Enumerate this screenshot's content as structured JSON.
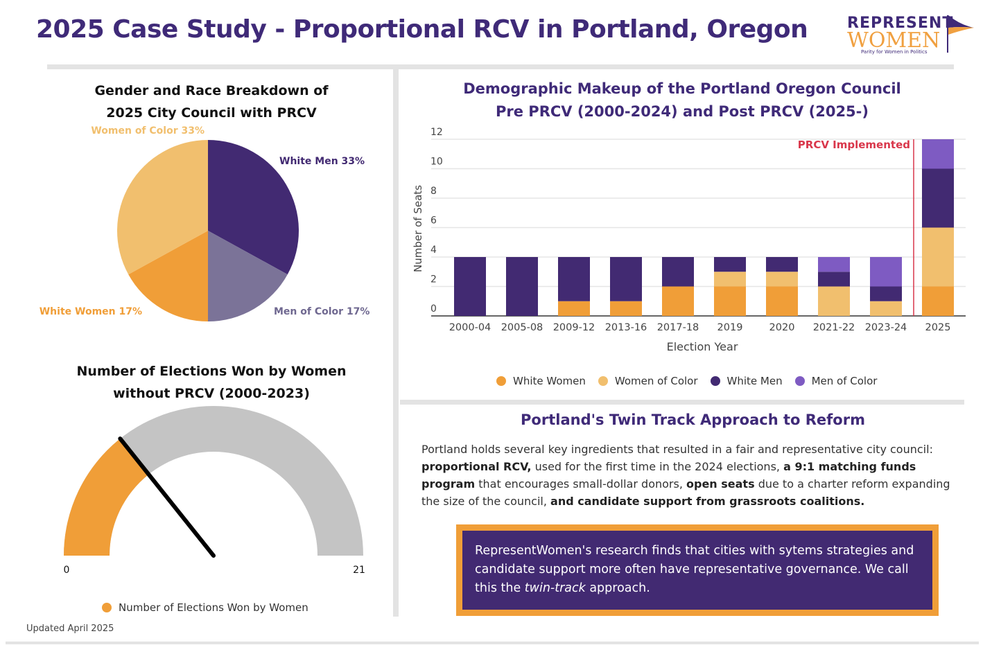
{
  "title": "2025 Case Study - Proportional RCV in Portland, Oregon",
  "logo": {
    "line1": "REPRESENT",
    "line2": "WOMEN",
    "tagline": "Parity for Women in Politics",
    "brand_purple": "#3f2a78",
    "brand_orange": "#f0a040"
  },
  "colors": {
    "white_women": "#f09e38",
    "women_of_color": "#f1bf6e",
    "white_men": "#422a72",
    "men_of_color": "#7e5bc2",
    "men_of_color_pie": "#7b7398",
    "prcv_line": "#d9374b",
    "gauge_bg": "#c4c4c4"
  },
  "pie": {
    "title_line1": "Gender and Race Breakdown of",
    "title_line2": "2025 City Council with PRCV"
  },
  "gauge": {
    "title_line1": "Number of Elections Won by Women",
    "title_line2": "without PRCV (2000-2023)",
    "min_label": "0",
    "max_label": "21",
    "legend": "Number of Elections Won by Women"
  },
  "bar": {
    "title_line1": "Demographic Makeup of the Portland Oregon Council",
    "title_line2": "Pre PRCV (2000-2024) and Post PRCV (2025-)",
    "annotation": "PRCV Implemented"
  },
  "reform": {
    "title": "Portland's Twin Track Approach to Reform",
    "p1": "Portland holds several key ingredients that resulted in a fair and representative city council: ",
    "b1": "proportional RCV,",
    "p2": " used for the first time in the 2024 elections, ",
    "b2": "a 9:1 matching funds program",
    "p3": " that encourages small-dollar donors, ",
    "b3": "open seats",
    "p4": " due to a charter reform expanding the size of the council, ",
    "b4": "and candidate support from grassroots coalitions."
  },
  "callout": {
    "t1": "RepresentWomen's research finds that cities with sytems strategies and candidate support more often have representative governance. We call this the ",
    "em": "twin-track",
    "t2": " approach."
  },
  "footer": "Updated April 2025",
  "chart_data": [
    {
      "type": "pie",
      "title": "Gender and Race Breakdown of 2025 City Council with PRCV",
      "slices": [
        {
          "label": "White Men",
          "value": 33,
          "display": "White Men 33%"
        },
        {
          "label": "Men of Color",
          "value": 17,
          "display": "Men of Color 17%"
        },
        {
          "label": "White Women",
          "value": 17,
          "display": "White Women 17%"
        },
        {
          "label": "Women of Color",
          "value": 33,
          "display": "Women of Color 33%"
        }
      ]
    },
    {
      "type": "bar",
      "stacked": true,
      "title": "Demographic Makeup of the Portland Oregon Council Pre PRCV (2000-2024) and Post PRCV (2025-)",
      "xlabel": "Election Year",
      "ylabel": "Number of Seats",
      "ylim": [
        0,
        12
      ],
      "yticks": [
        0,
        2,
        4,
        6,
        8,
        10,
        12
      ],
      "grid": true,
      "legend": "bottom",
      "categories": [
        "2000-04",
        "2005-08",
        "2009-12",
        "2013-16",
        "2017-18",
        "2019",
        "2020",
        "2021-22",
        "2023-24",
        "2025"
      ],
      "series": [
        {
          "name": "White Women",
          "values": [
            0,
            0,
            1,
            1,
            2,
            2,
            2,
            0,
            0,
            2
          ]
        },
        {
          "name": "Women of Color",
          "values": [
            0,
            0,
            0,
            0,
            0,
            1,
            1,
            2,
            1,
            4
          ]
        },
        {
          "name": "White Men",
          "values": [
            4,
            4,
            3,
            3,
            2,
            1,
            1,
            1,
            1,
            4
          ]
        },
        {
          "name": "Men of Color",
          "values": [
            0,
            0,
            0,
            0,
            0,
            0,
            0,
            1,
            2,
            2
          ]
        }
      ],
      "annotation": {
        "text": "PRCV Implemented",
        "between": [
          "2023-24",
          "2025"
        ]
      }
    },
    {
      "type": "gauge",
      "title": "Number of Elections Won by Women without PRCV (2000-2023)",
      "min": 0,
      "max": 21,
      "value": 6,
      "series_name": "Number of Elections Won by Women"
    }
  ]
}
